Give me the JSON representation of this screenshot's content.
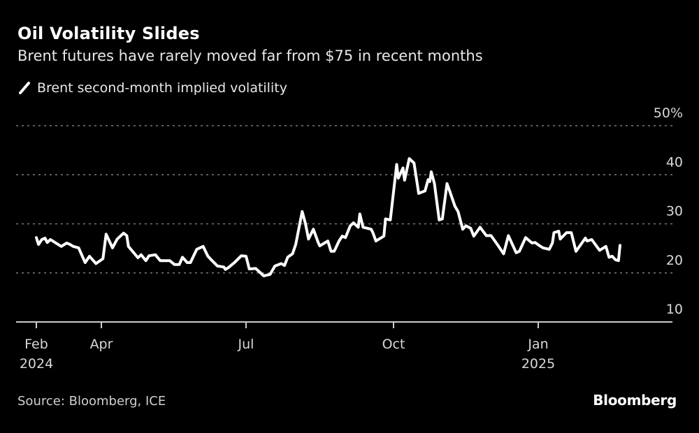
{
  "header": {
    "title": "Oil Volatility Slides",
    "subtitle": "Brent futures have rarely moved far from $75 in recent months"
  },
  "legend": {
    "label": "Brent second-month implied volatility",
    "icon": "slash-line-icon"
  },
  "footer": {
    "source": "Source: Bloomberg, ICE",
    "logo": "Bloomberg"
  },
  "colors": {
    "background": "#000000",
    "line": "#ffffff",
    "grid": "#7a7a7a",
    "axis": "#cccccc"
  },
  "chart_data": {
    "type": "line",
    "title": "Oil Volatility Slides",
    "subtitle": "Brent futures have rarely moved far from $75 in recent months",
    "grid": true,
    "legend_position": "top-left",
    "y_axis_side": "right",
    "ylim": [
      10,
      50
    ],
    "yticks": [
      {
        "value": 50,
        "label": "50%"
      },
      {
        "value": 40,
        "label": "40"
      },
      {
        "value": 30,
        "label": "30"
      },
      {
        "value": 20,
        "label": "20"
      },
      {
        "value": 10,
        "label": "10"
      }
    ],
    "xticks": [
      {
        "date": "2024-02-01",
        "label": "Feb",
        "sublabel": "2024"
      },
      {
        "date": "2024-04-01",
        "label": "Apr",
        "sublabel": ""
      },
      {
        "date": "2024-07-01",
        "label": "Jul",
        "sublabel": ""
      },
      {
        "date": "2024-10-01",
        "label": "Oct",
        "sublabel": ""
      },
      {
        "date": "2025-01-01",
        "label": "Jan",
        "sublabel": "2025"
      }
    ],
    "series": [
      {
        "name": "Brent second-month implied volatility",
        "points": [
          [
            "2024-02-01",
            27.2
          ],
          [
            "2024-02-03",
            25.8
          ],
          [
            "2024-02-06",
            26.8
          ],
          [
            "2024-02-09",
            27.1
          ],
          [
            "2024-02-11",
            26.2
          ],
          [
            "2024-02-14",
            26.8
          ],
          [
            "2024-02-19",
            26.1
          ],
          [
            "2024-02-24",
            25.4
          ],
          [
            "2024-02-29",
            26.1
          ],
          [
            "2024-03-03",
            25.8
          ],
          [
            "2024-03-06",
            25.4
          ],
          [
            "2024-03-11",
            25.1
          ],
          [
            "2024-03-17",
            22.1
          ],
          [
            "2024-03-21",
            23.4
          ],
          [
            "2024-03-27",
            21.9
          ],
          [
            "2024-04-02",
            22.9
          ],
          [
            "2024-04-04",
            27.9
          ],
          [
            "2024-04-08",
            25.1
          ],
          [
            "2024-04-11",
            26.9
          ],
          [
            "2024-04-15",
            28.1
          ],
          [
            "2024-04-17",
            27.6
          ],
          [
            "2024-04-18",
            25.4
          ],
          [
            "2024-04-24",
            23.1
          ],
          [
            "2024-04-26",
            23.7
          ],
          [
            "2024-04-29",
            22.5
          ],
          [
            "2024-05-01",
            23.5
          ],
          [
            "2024-05-05",
            23.7
          ],
          [
            "2024-05-08",
            22.5
          ],
          [
            "2024-05-14",
            22.5
          ],
          [
            "2024-05-17",
            21.7
          ],
          [
            "2024-05-20",
            21.7
          ],
          [
            "2024-05-22",
            23.2
          ],
          [
            "2024-05-25",
            22.1
          ],
          [
            "2024-05-27",
            22.1
          ],
          [
            "2024-05-31",
            24.8
          ],
          [
            "2024-06-04",
            25.4
          ],
          [
            "2024-06-07",
            23.4
          ],
          [
            "2024-06-09",
            22.7
          ],
          [
            "2024-06-13",
            21.4
          ],
          [
            "2024-06-17",
            21.2
          ],
          [
            "2024-06-18",
            20.7
          ],
          [
            "2024-06-20",
            21.1
          ],
          [
            "2024-06-24",
            22.2
          ],
          [
            "2024-06-28",
            23.5
          ],
          [
            "2024-07-01",
            23.4
          ],
          [
            "2024-07-03",
            20.8
          ],
          [
            "2024-07-07",
            20.9
          ],
          [
            "2024-07-12",
            19.4
          ],
          [
            "2024-07-16",
            19.7
          ],
          [
            "2024-07-19",
            21.4
          ],
          [
            "2024-07-23",
            21.9
          ],
          [
            "2024-07-25",
            21.5
          ],
          [
            "2024-07-27",
            23.2
          ],
          [
            "2024-07-30",
            23.9
          ],
          [
            "2024-08-01",
            25.8
          ],
          [
            "2024-08-05",
            32.5
          ],
          [
            "2024-08-07",
            30.1
          ],
          [
            "2024-08-09",
            26.9
          ],
          [
            "2024-08-12",
            28.9
          ],
          [
            "2024-08-15",
            26.2
          ],
          [
            "2024-08-16",
            25.5
          ],
          [
            "2024-08-21",
            26.5
          ],
          [
            "2024-08-23",
            24.4
          ],
          [
            "2024-08-25",
            24.4
          ],
          [
            "2024-08-28",
            26.5
          ],
          [
            "2024-08-30",
            27.5
          ],
          [
            "2024-09-01",
            27.2
          ],
          [
            "2024-09-04",
            29.6
          ],
          [
            "2024-09-06",
            30.2
          ],
          [
            "2024-09-09",
            29.3
          ],
          [
            "2024-09-10",
            32.0
          ],
          [
            "2024-09-12",
            29.3
          ],
          [
            "2024-09-17",
            28.9
          ],
          [
            "2024-09-18",
            28.3
          ],
          [
            "2024-09-20",
            26.5
          ],
          [
            "2024-09-25",
            27.5
          ],
          [
            "2024-09-26",
            31.0
          ],
          [
            "2024-09-29",
            30.8
          ],
          [
            "2024-10-03",
            42.1
          ],
          [
            "2024-10-04",
            39.3
          ],
          [
            "2024-10-07",
            41.4
          ],
          [
            "2024-10-08",
            38.9
          ],
          [
            "2024-10-11",
            43.3
          ],
          [
            "2024-10-14",
            42.4
          ],
          [
            "2024-10-17",
            36.2
          ],
          [
            "2024-10-21",
            36.7
          ],
          [
            "2024-10-23",
            39.0
          ],
          [
            "2024-10-24",
            38.6
          ],
          [
            "2024-10-25",
            40.6
          ],
          [
            "2024-10-27",
            38.2
          ],
          [
            "2024-10-30",
            30.8
          ],
          [
            "2024-11-01",
            31.0
          ],
          [
            "2024-11-04",
            38.2
          ],
          [
            "2024-11-06",
            36.4
          ],
          [
            "2024-11-09",
            33.6
          ],
          [
            "2024-11-11",
            32.5
          ],
          [
            "2024-11-14",
            28.9
          ],
          [
            "2024-11-16",
            29.6
          ],
          [
            "2024-11-19",
            29.1
          ],
          [
            "2024-11-21",
            27.5
          ],
          [
            "2024-11-25",
            29.3
          ],
          [
            "2024-11-29",
            27.6
          ],
          [
            "2024-12-02",
            27.6
          ],
          [
            "2024-12-06",
            25.8
          ],
          [
            "2024-12-10",
            23.9
          ],
          [
            "2024-12-13",
            27.6
          ],
          [
            "2024-12-18",
            24.1
          ],
          [
            "2024-12-20",
            24.4
          ],
          [
            "2024-12-24",
            27.2
          ],
          [
            "2024-12-28",
            26.1
          ],
          [
            "2024-12-30",
            26.2
          ],
          [
            "2025-01-02",
            25.5
          ],
          [
            "2025-01-04",
            25.1
          ],
          [
            "2025-01-08",
            24.8
          ],
          [
            "2025-01-10",
            26.1
          ],
          [
            "2025-01-11",
            28.2
          ],
          [
            "2025-01-14",
            28.5
          ],
          [
            "2025-01-15",
            26.9
          ],
          [
            "2025-01-19",
            28.2
          ],
          [
            "2025-01-22",
            28.2
          ],
          [
            "2025-01-25",
            24.4
          ],
          [
            "2025-01-31",
            27.1
          ],
          [
            "2025-02-01",
            26.5
          ],
          [
            "2025-02-04",
            26.8
          ],
          [
            "2025-02-09",
            24.6
          ],
          [
            "2025-02-13",
            25.4
          ],
          [
            "2025-02-15",
            23.2
          ],
          [
            "2025-02-17",
            23.4
          ],
          [
            "2025-02-19",
            22.7
          ],
          [
            "2025-02-21",
            22.5
          ],
          [
            "2025-02-22",
            25.6
          ]
        ]
      }
    ]
  }
}
